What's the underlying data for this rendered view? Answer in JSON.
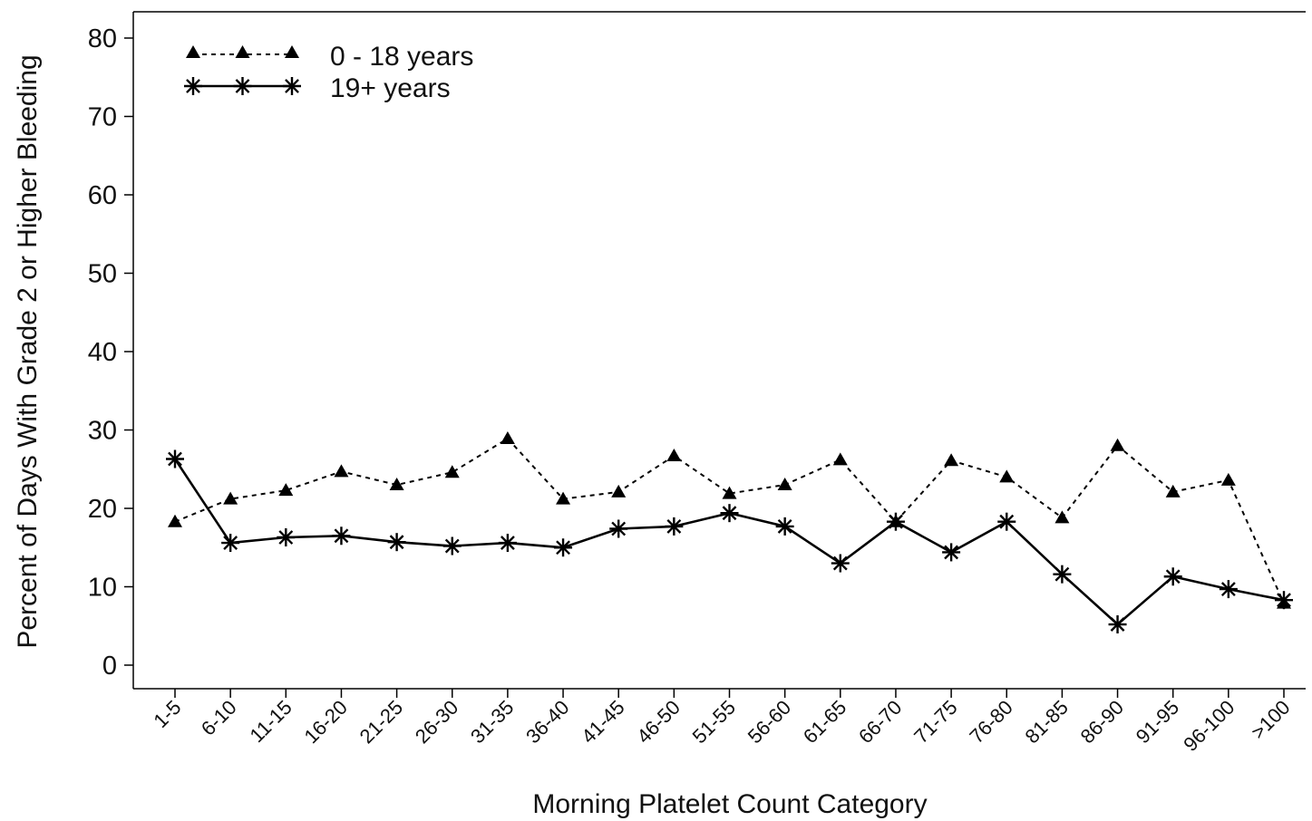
{
  "chart_data": {
    "type": "line",
    "title": "",
    "xlabel": "Morning Platelet Count Category",
    "ylabel": "Percent of Days With Grade 2 or Higher Bleeding",
    "ylim": [
      0,
      80
    ],
    "yticks": [
      0,
      10,
      20,
      30,
      40,
      50,
      60,
      70,
      80
    ],
    "grid": false,
    "legend_position": "top-left",
    "categories": [
      "1-5",
      "6-10",
      "11-15",
      "16-20",
      "21-25",
      "26-30",
      "31-35",
      "36-40",
      "41-45",
      "46-50",
      "51-55",
      "56-60",
      "61-65",
      "66-70",
      "71-75",
      "76-80",
      "81-85",
      "86-90",
      "91-95",
      "96-100",
      ">100"
    ],
    "series": [
      {
        "name": "0 - 18 years",
        "line_style": "dotted",
        "marker": "triangle",
        "color": "#000000",
        "values": [
          18.3,
          21.2,
          22.3,
          24.7,
          23.0,
          24.6,
          28.9,
          21.2,
          22.1,
          26.7,
          21.9,
          23.0,
          26.2,
          18.3,
          26.1,
          24.0,
          18.8,
          28.0,
          22.1,
          23.6,
          7.9
        ]
      },
      {
        "name": "19+ years",
        "line_style": "solid",
        "marker": "asterisk",
        "color": "#000000",
        "values": [
          26.3,
          15.6,
          16.3,
          16.5,
          15.7,
          15.2,
          15.6,
          15.0,
          17.4,
          17.7,
          19.4,
          17.7,
          13.0,
          18.3,
          14.4,
          18.3,
          11.6,
          5.2,
          11.3,
          9.7,
          8.3
        ]
      }
    ]
  }
}
